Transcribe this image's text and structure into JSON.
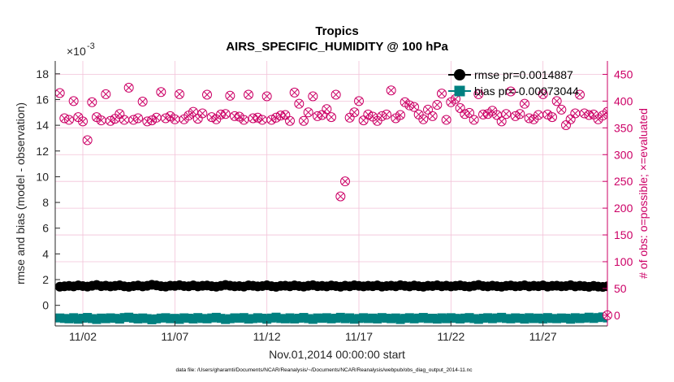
{
  "chart_data": {
    "type": "scatter",
    "title": "Tropics",
    "subtitle": "AIRS_SPECIFIC_HUMIDITY @ 100 hPa",
    "xlabel": "Nov.01,2014 00:00:00 start",
    "ylabel_left": "rmse and bias (model - observation)",
    "ylabel_right": "# of obs: o=possible; ×=evaluated",
    "exponent_label": "×10",
    "exponent_power": "-3",
    "footnote": "data file: /Users/gharamti/Documents/NCAR/Reanalysis/~/Documents/NCAR/Reanalysis/webpub/obs_diag_output_2014-11.nc",
    "x_range_days": [
      0.5,
      30.5
    ],
    "x_ticks": [
      {
        "label": "11/02",
        "day": 2
      },
      {
        "label": "11/07",
        "day": 7
      },
      {
        "label": "11/12",
        "day": 12
      },
      {
        "label": "11/17",
        "day": 17
      },
      {
        "label": "11/22",
        "day": 22
      },
      {
        "label": "11/27",
        "day": 27
      }
    ],
    "y_left_range": [
      -1.6,
      19
    ],
    "y_left_ticks": [
      {
        "label": "0",
        "value": 0
      },
      {
        "label": "2",
        "value": 2
      },
      {
        "label": "4",
        "value": 4
      },
      {
        "label": "6",
        "value": 6
      },
      {
        "label": "8",
        "value": 8
      },
      {
        "label": "10",
        "value": 10
      },
      {
        "label": "12",
        "value": 12
      },
      {
        "label": "14",
        "value": 14
      },
      {
        "label": "16",
        "value": 16
      },
      {
        "label": "18",
        "value": 18
      }
    ],
    "y_right_range": [
      -20,
      475
    ],
    "y_right_ticks": [
      {
        "label": "0",
        "value": 0
      },
      {
        "label": "50",
        "value": 50
      },
      {
        "label": "100",
        "value": 100
      },
      {
        "label": "150",
        "value": 150
      },
      {
        "label": "200",
        "value": 200
      },
      {
        "label": "250",
        "value": 250
      },
      {
        "label": "300",
        "value": 300
      },
      {
        "label": "350",
        "value": 350
      },
      {
        "label": "400",
        "value": 400
      },
      {
        "label": "450",
        "value": 450
      }
    ],
    "legend": [
      {
        "label": "rmse pr=0.0014887",
        "series": "rmse"
      },
      {
        "label": "bias pr=-0.00073044",
        "series": "bias"
      }
    ],
    "legend_position": "top-right",
    "colors": {
      "rmse": "#000000",
      "bias": "#008080",
      "obs": "#cc0066",
      "grid": "#f2c2d8",
      "axis": "#262626"
    },
    "series": [
      {
        "name": "rmse",
        "axis": "left",
        "marker": "circle-line",
        "x_start": 0.75,
        "x_step": 0.25,
        "values": [
          1.45,
          1.48,
          1.51,
          1.47,
          1.55,
          1.5,
          1.46,
          1.52,
          1.58,
          1.49,
          1.53,
          1.47,
          1.51,
          1.56,
          1.48,
          1.44,
          1.5,
          1.54,
          1.47,
          1.52,
          1.6,
          1.55,
          1.49,
          1.46,
          1.53,
          1.51,
          1.57,
          1.5,
          1.48,
          1.55,
          1.47,
          1.52,
          1.54,
          1.49,
          1.45,
          1.51,
          1.58,
          1.53,
          1.48,
          1.5,
          1.46,
          1.55,
          1.52,
          1.47,
          1.5,
          1.56,
          1.49,
          1.44,
          1.51,
          1.53,
          1.48,
          1.55,
          1.5,
          1.46,
          1.52,
          1.57,
          1.49,
          1.51,
          1.47,
          1.54,
          1.5,
          1.45,
          1.53,
          1.48,
          1.56,
          1.51,
          1.47,
          1.52,
          1.49,
          1.55,
          1.46,
          1.5,
          1.53,
          1.48,
          1.57,
          1.51,
          1.47,
          1.54,
          1.49,
          1.45,
          1.52,
          1.5,
          1.56,
          1.48,
          1.53,
          1.47,
          1.51,
          1.55,
          1.49,
          1.46,
          1.52,
          1.58,
          1.5,
          1.47,
          1.53,
          1.49,
          1.45,
          1.51,
          1.54,
          1.48,
          1.5,
          1.56,
          1.47,
          1.52,
          1.49,
          1.55,
          1.46,
          1.51,
          1.53,
          1.48,
          1.5,
          1.57,
          1.47,
          1.52,
          1.49,
          1.44,
          1.51,
          1.46,
          1.43,
          1.48
        ]
      },
      {
        "name": "bias",
        "axis": "left",
        "marker": "square-line",
        "x_start": 0.75,
        "x_step": 0.25,
        "values": [
          -0.98,
          -1.02,
          -1.05,
          -0.96,
          -1.08,
          -1.0,
          -0.94,
          -1.03,
          -1.1,
          -0.99,
          -1.04,
          -0.97,
          -1.01,
          -1.07,
          -0.95,
          -0.92,
          -1.0,
          -1.06,
          -0.98,
          -1.03,
          -1.12,
          -1.05,
          -0.99,
          -0.96,
          -1.04,
          -1.01,
          -1.09,
          -0.97,
          -1.0,
          -1.06,
          -0.95,
          -1.02,
          -1.05,
          -0.98,
          -0.93,
          -1.01,
          -1.1,
          -1.04,
          -0.97,
          -1.0,
          -0.95,
          -1.07,
          -1.03,
          -0.96,
          -1.0,
          -1.08,
          -0.99,
          -0.92,
          -1.02,
          -1.05,
          -0.97,
          -1.06,
          -1.0,
          -0.94,
          -1.03,
          -1.09,
          -0.98,
          -1.01,
          -0.96,
          -1.05,
          -1.0,
          -0.93,
          -1.04,
          -0.97,
          -1.08,
          -1.02,
          -0.96,
          -1.03,
          -0.99,
          -1.06,
          -0.95,
          -1.0,
          -1.04,
          -0.98,
          -1.1,
          -1.01,
          -0.96,
          -1.05,
          -0.99,
          -0.94,
          -1.03,
          -1.0,
          -1.07,
          -0.97,
          -1.04,
          -0.96,
          -1.01,
          -1.06,
          -0.99,
          -0.95,
          -1.03,
          -1.09,
          -1.0,
          -0.96,
          -1.04,
          -0.98,
          -0.93,
          -1.02,
          -1.05,
          -0.97,
          -1.0,
          -1.07,
          -0.96,
          -1.03,
          -0.99,
          -1.06,
          -0.95,
          -1.02,
          -1.04,
          -0.98,
          -1.0,
          -1.08,
          -0.96,
          -1.03,
          -0.99,
          -0.92,
          -1.02,
          -0.95,
          -0.9,
          -0.98
        ]
      },
      {
        "name": "obs",
        "axis": "right",
        "marker": "circle-x",
        "x_start": 0.75,
        "x_step": 0.25,
        "values": [
          415,
          368,
          365,
          400,
          370,
          362,
          327,
          398,
          370,
          364,
          413,
          363,
          367,
          376,
          365,
          425,
          365,
          368,
          399,
          362,
          364,
          369,
          417,
          368,
          372,
          366,
          413,
          366,
          373,
          380,
          367,
          377,
          412,
          370,
          366,
          375,
          376,
          410,
          372,
          371,
          365,
          412,
          368,
          369,
          365,
          409,
          365,
          369,
          373,
          374,
          363,
          416,
          395,
          363,
          379,
          409,
          372,
          374,
          385,
          370,
          412,
          222,
          250,
          369,
          379,
          400,
          364,
          375,
          371,
          363,
          372,
          375,
          420,
          368,
          374,
          398,
          392,
          389,
          375,
          366,
          384,
          372,
          393,
          414,
          365,
          398,
          404,
          387,
          376,
          378,
          365,
          413,
          375,
          376,
          382,
          374,
          362,
          376,
          418,
          372,
          376,
          395,
          368,
          366,
          374,
          413,
          375,
          370,
          400,
          384,
          355,
          366,
          377,
          412,
          377,
          374,
          375,
          366,
          373,
          380
        ]
      }
    ],
    "extra_obs_points": [
      {
        "day": 30.5,
        "value": 0
      }
    ]
  }
}
